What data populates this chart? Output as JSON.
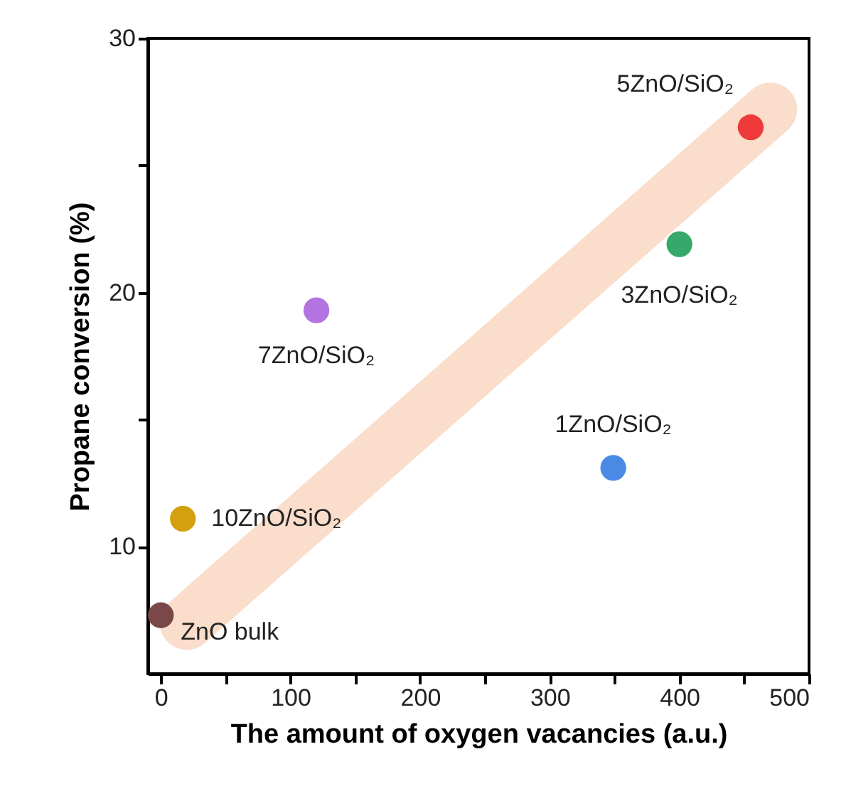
{
  "chart_data": {
    "type": "scatter",
    "xlabel": "The amount of oxygen vacancies (a.u.)",
    "ylabel": "Propane conversion (%)",
    "xlim": [
      -10,
      500
    ],
    "ylim": [
      5,
      30
    ],
    "xticks": [
      0,
      {
        "value": 50,
        "label": null
      },
      100,
      {
        "value": 150,
        "label": null
      },
      200,
      {
        "value": 250,
        "label": null
      },
      300,
      {
        "value": 350,
        "label": null
      },
      400,
      {
        "value": 450,
        "label": null
      },
      500
    ],
    "yticks": [
      10,
      {
        "value": 15,
        "label": null
      },
      20,
      {
        "value": 25,
        "label": null
      },
      30
    ],
    "grid": false,
    "marker": "circle",
    "series": [
      {
        "type": "line",
        "marker": "none",
        "color": "#f8d2b8",
        "x": [
          20,
          470
        ],
        "values": [
          7.0,
          27.2
        ]
      },
      {
        "name": "ZnO bulk",
        "color": "#7a4848",
        "x": [
          0
        ],
        "values": [
          7.3
        ]
      },
      {
        "name": "10ZnO/SiO₂",
        "color": "#d4a010",
        "x": [
          17
        ],
        "values": [
          11.1
        ]
      },
      {
        "name": "7ZnO/SiO₂",
        "color": "#b373e0",
        "x": [
          120
        ],
        "values": [
          19.3
        ]
      },
      {
        "name": "1ZnO/SiO₂",
        "color": "#4a8ae6",
        "x": [
          349
        ],
        "values": [
          13.1
        ]
      },
      {
        "name": "3ZnO/SiO₂",
        "color": "#35a86a",
        "x": [
          400
        ],
        "values": [
          21.9
        ]
      },
      {
        "name": "5ZnO/SiO₂",
        "color": "#ee3a3a",
        "x": [
          455
        ],
        "values": [
          26.5
        ]
      }
    ]
  }
}
